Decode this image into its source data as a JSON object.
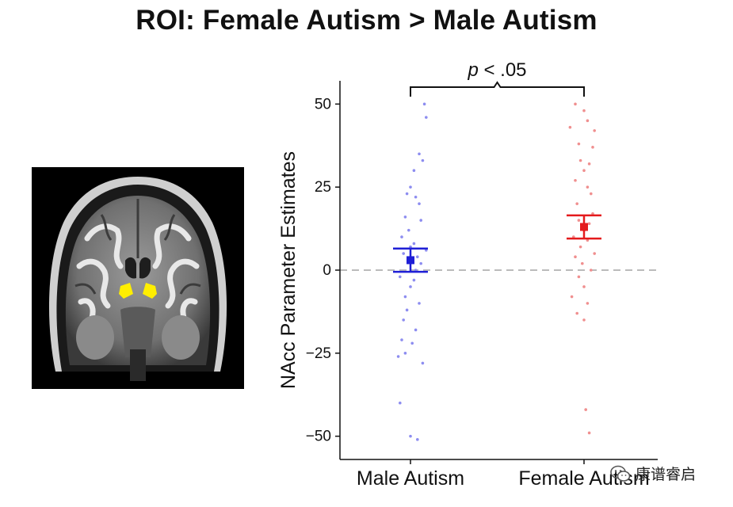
{
  "title": "ROI: Female Autism >  Male Autism",
  "watermark": {
    "text": "康谱睿启",
    "icon": "wechat-logo-icon"
  },
  "chart_data": {
    "type": "scatter",
    "ylabel": "NAcc Parameter Estimates",
    "xlabel": "",
    "categories": [
      "Male Autism",
      "Female Autism"
    ],
    "yticks": [
      50,
      25,
      0,
      -25,
      -50
    ],
    "ytick_labels": [
      "50",
      "25",
      "0",
      "−25",
      "−50"
    ],
    "ylim": [
      -57,
      57
    ],
    "reference_line": {
      "y": 0,
      "style": "dashed",
      "color": "#bbbbbb"
    },
    "significance": {
      "label_italic": "p",
      "label_rest": " < .05",
      "between": [
        "Male Autism",
        "Female Autism"
      ]
    },
    "series": [
      {
        "name": "Male Autism",
        "color": "#1f1fd6",
        "point_color": "#8d8df0",
        "mean": 3,
        "ci": [
          -0.5,
          6.5
        ],
        "points": [
          {
            "j": 0.08,
            "y": 50
          },
          {
            "j": 0.09,
            "y": 46
          },
          {
            "j": 0.05,
            "y": 35
          },
          {
            "j": 0.07,
            "y": 33
          },
          {
            "j": 0.02,
            "y": 30
          },
          {
            "j": 0.0,
            "y": 25
          },
          {
            "j": -0.02,
            "y": 23
          },
          {
            "j": 0.03,
            "y": 22
          },
          {
            "j": 0.05,
            "y": 20
          },
          {
            "j": -0.03,
            "y": 16
          },
          {
            "j": 0.06,
            "y": 15
          },
          {
            "j": -0.01,
            "y": 12
          },
          {
            "j": -0.05,
            "y": 10
          },
          {
            "j": 0.02,
            "y": 8
          },
          {
            "j": 0.0,
            "y": 7
          },
          {
            "j": 0.09,
            "y": 6
          },
          {
            "j": -0.04,
            "y": 5
          },
          {
            "j": 0.04,
            "y": 4
          },
          {
            "j": 0.06,
            "y": 2
          },
          {
            "j": 0.03,
            "y": 0
          },
          {
            "j": -0.06,
            "y": -2
          },
          {
            "j": 0.02,
            "y": -3
          },
          {
            "j": 0.0,
            "y": -5
          },
          {
            "j": -0.03,
            "y": -8
          },
          {
            "j": 0.05,
            "y": -10
          },
          {
            "j": -0.02,
            "y": -12
          },
          {
            "j": -0.04,
            "y": -15
          },
          {
            "j": 0.03,
            "y": -18
          },
          {
            "j": -0.05,
            "y": -21
          },
          {
            "j": 0.01,
            "y": -22
          },
          {
            "j": -0.03,
            "y": -25
          },
          {
            "j": -0.07,
            "y": -26
          },
          {
            "j": 0.07,
            "y": -28
          },
          {
            "j": -0.06,
            "y": -40
          },
          {
            "j": 0.0,
            "y": -50
          },
          {
            "j": 0.04,
            "y": -51
          }
        ]
      },
      {
        "name": "Female Autism",
        "color": "#e41a1c",
        "point_color": "#f08f8f",
        "mean": 13,
        "ci": [
          9.5,
          16.5
        ],
        "points": [
          {
            "j": -0.05,
            "y": 50
          },
          {
            "j": 0.0,
            "y": 48
          },
          {
            "j": 0.02,
            "y": 45
          },
          {
            "j": -0.08,
            "y": 43
          },
          {
            "j": 0.06,
            "y": 42
          },
          {
            "j": -0.03,
            "y": 38
          },
          {
            "j": 0.05,
            "y": 37
          },
          {
            "j": -0.02,
            "y": 33
          },
          {
            "j": 0.03,
            "y": 32
          },
          {
            "j": 0.0,
            "y": 30
          },
          {
            "j": -0.05,
            "y": 27
          },
          {
            "j": 0.02,
            "y": 25
          },
          {
            "j": 0.04,
            "y": 23
          },
          {
            "j": -0.04,
            "y": 20
          },
          {
            "j": 0.05,
            "y": 17
          },
          {
            "j": -0.03,
            "y": 15
          },
          {
            "j": 0.03,
            "y": 14
          },
          {
            "j": 0.0,
            "y": 12
          },
          {
            "j": -0.06,
            "y": 10
          },
          {
            "j": 0.02,
            "y": 9
          },
          {
            "j": -0.02,
            "y": 7
          },
          {
            "j": 0.06,
            "y": 5
          },
          {
            "j": -0.05,
            "y": 4
          },
          {
            "j": -0.01,
            "y": 2
          },
          {
            "j": 0.04,
            "y": 0
          },
          {
            "j": -0.03,
            "y": -2
          },
          {
            "j": 0.0,
            "y": -5
          },
          {
            "j": -0.07,
            "y": -8
          },
          {
            "j": 0.02,
            "y": -10
          },
          {
            "j": -0.04,
            "y": -13
          },
          {
            "j": 0.0,
            "y": -15
          },
          {
            "j": 0.01,
            "y": -42
          },
          {
            "j": 0.03,
            "y": -49
          }
        ]
      }
    ]
  }
}
